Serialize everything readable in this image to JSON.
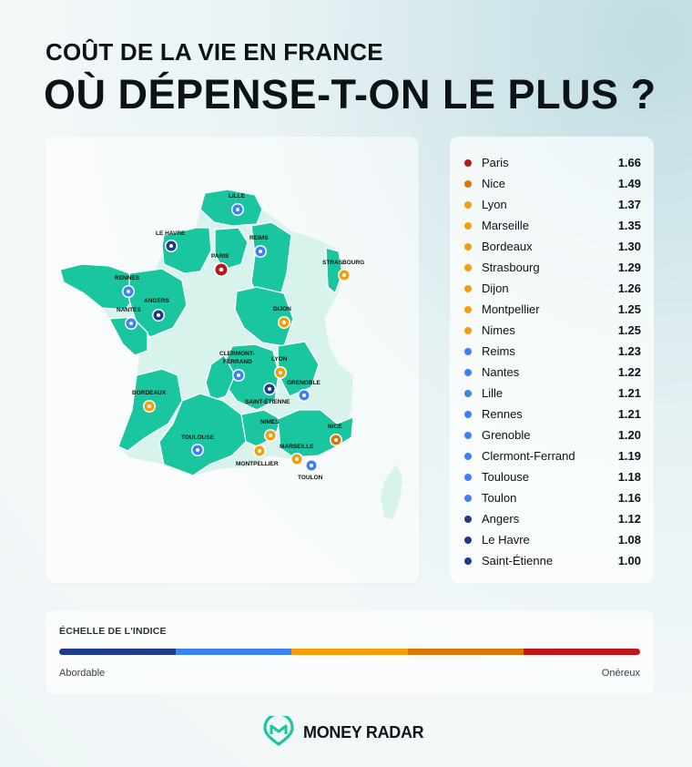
{
  "header": {
    "title_line1": "COÛT DE LA VIE EN FRANCE",
    "title_line2": "OÙ DÉPENSE-T-ON LE PLUS ?"
  },
  "colors": {
    "tier1": "#1f3a8a",
    "tier2": "#3b82f6",
    "tier3": "#f59e0b",
    "tier4": "#d97706",
    "tier5": "#c01818",
    "region_highlight": "#19c6a0",
    "region_pale": "#d8f3ec"
  },
  "ranking": [
    {
      "city": "Paris",
      "value": "1.66",
      "color": "#b31b1b"
    },
    {
      "city": "Nice",
      "value": "1.49",
      "color": "#d97706"
    },
    {
      "city": "Lyon",
      "value": "1.37",
      "color": "#f59e0b"
    },
    {
      "city": "Marseille",
      "value": "1.35",
      "color": "#f59e0b"
    },
    {
      "city": "Bordeaux",
      "value": "1.30",
      "color": "#f59e0b"
    },
    {
      "city": "Strasbourg",
      "value": "1.29",
      "color": "#f59e0b"
    },
    {
      "city": "Dijon",
      "value": "1.26",
      "color": "#f59e0b"
    },
    {
      "city": "Montpellier",
      "value": "1.25",
      "color": "#f59e0b"
    },
    {
      "city": "Nimes",
      "value": "1.25",
      "color": "#f59e0b"
    },
    {
      "city": "Reims",
      "value": "1.23",
      "color": "#3b82f6"
    },
    {
      "city": "Nantes",
      "value": "1.22",
      "color": "#3b82f6"
    },
    {
      "city": "Lille",
      "value": "1.21",
      "color": "#3b82f6"
    },
    {
      "city": "Rennes",
      "value": "1.21",
      "color": "#3b82f6"
    },
    {
      "city": "Grenoble",
      "value": "1.20",
      "color": "#3b82f6"
    },
    {
      "city": "Clermont-Ferrand",
      "value": "1.19",
      "color": "#3b82f6"
    },
    {
      "city": "Toulouse",
      "value": "1.18",
      "color": "#3b82f6"
    },
    {
      "city": "Toulon",
      "value": "1.16",
      "color": "#3b82f6"
    },
    {
      "city": "Angers",
      "value": "1.12",
      "color": "#1f3a8a"
    },
    {
      "city": "Le Havre",
      "value": "1.08",
      "color": "#1f3a8a"
    },
    {
      "city": "Saint-Étienne",
      "value": "1.00",
      "color": "#1f3a8a"
    }
  ],
  "map_labels": {
    "lille": "LILLE",
    "le_havre": "LE HAVRE",
    "paris": "PARIS",
    "reims": "REIMS",
    "strasbourg": "STRASBOURG",
    "rennes": "RENNES",
    "angers": "ANGERS",
    "nantes": "NANTES",
    "dijon": "DIJON",
    "clermont_1": "CLERMONT-",
    "clermont_2": "FERRAND",
    "lyon": "LYON",
    "grenoble": "GRENOBLE",
    "saint_etienne": "SAINT-ÉTIENNE",
    "bordeaux": "BORDEAUX",
    "nimes": "NIMES",
    "nice": "NICE",
    "toulouse": "TOULOUSE",
    "marseille": "MARSEILLE",
    "montpellier": "MONTPELLIER",
    "toulon": "TOULON"
  },
  "scale": {
    "title": "ÉCHELLE DE L'INDICE",
    "left_label": "Abordable",
    "right_label": "Onéreux",
    "segments": [
      "#1e3a8a",
      "#3b82f6",
      "#f59e0b",
      "#d97706",
      "#c01818"
    ]
  },
  "brand": {
    "name": "MONEY RADAR",
    "logo": "radar-logo-icon"
  }
}
